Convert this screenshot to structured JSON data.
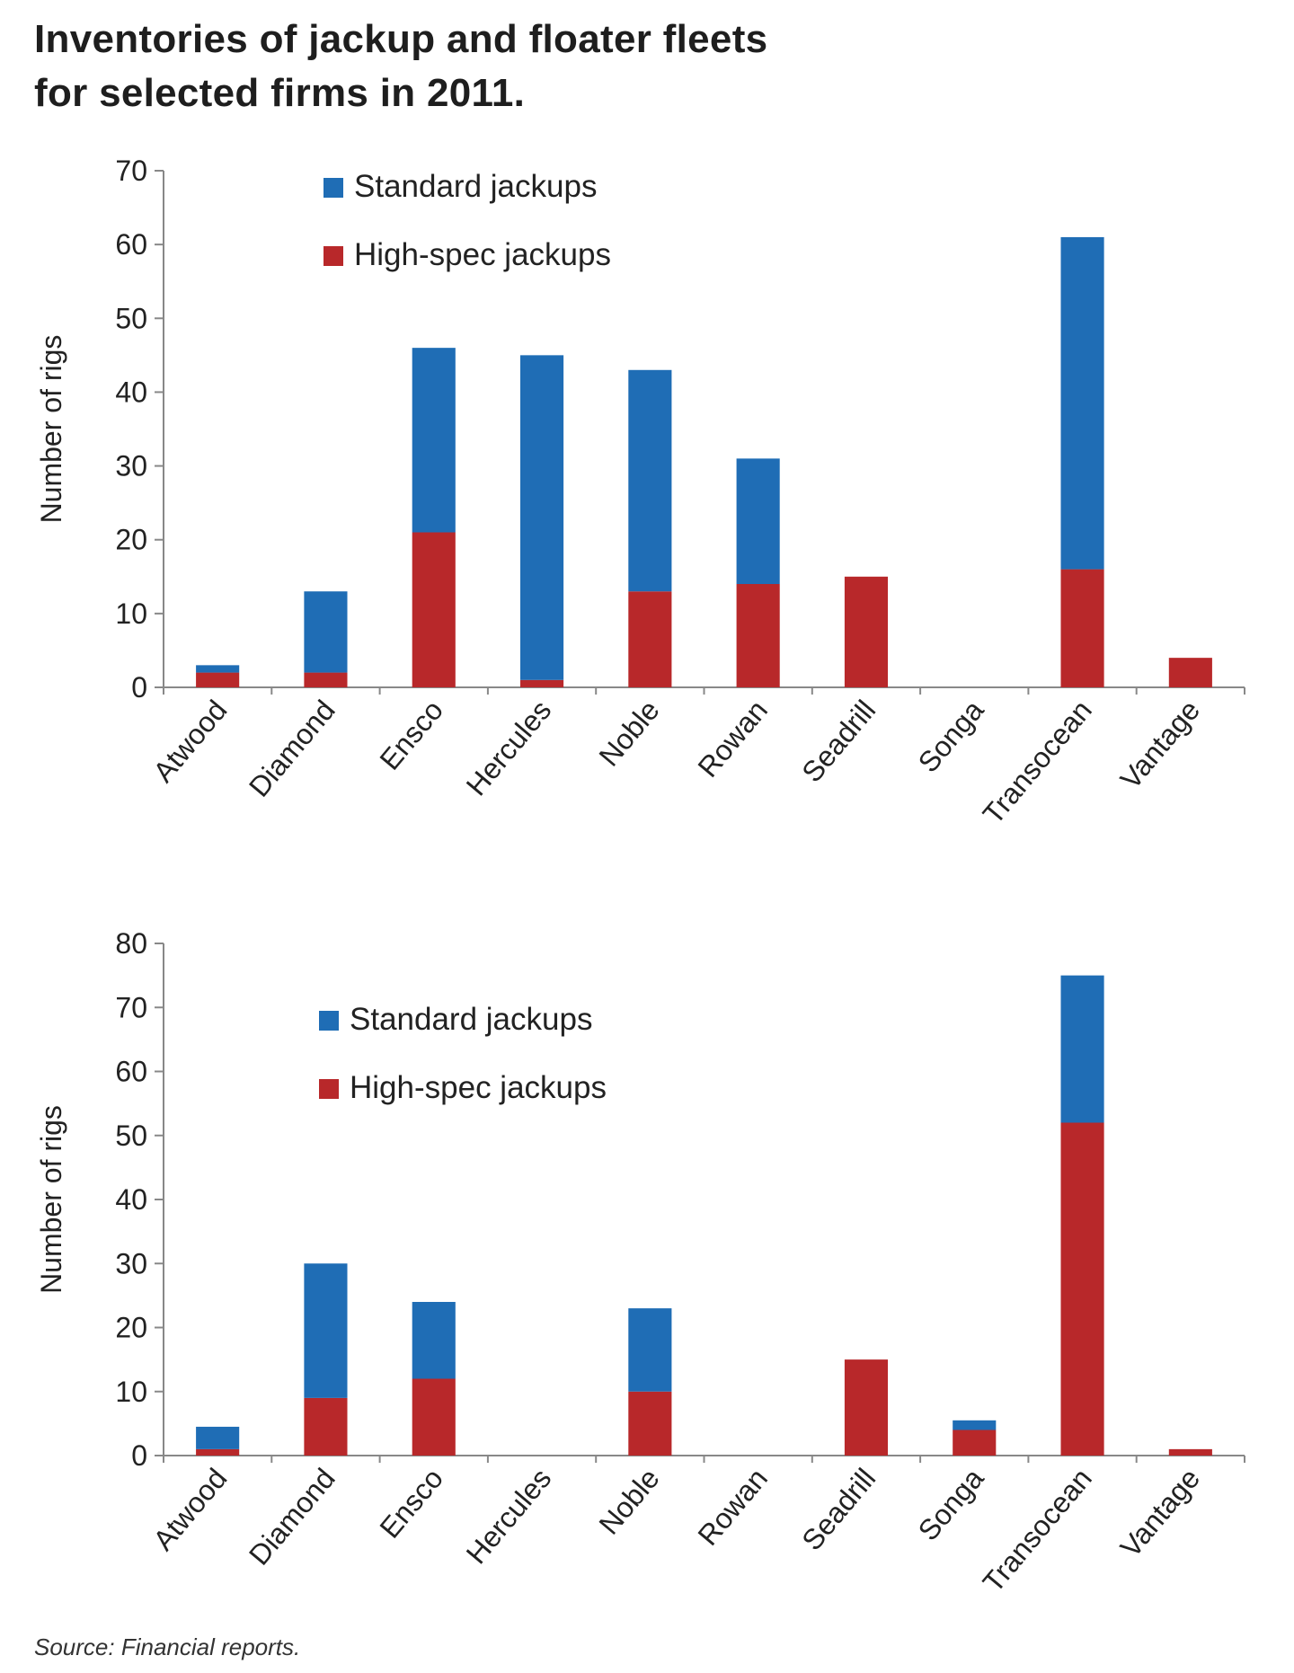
{
  "title": {
    "line1": "Inventories of jackup and floater fleets",
    "line2": "for selected firms in 2011."
  },
  "source": "Source: Financial reports.",
  "colors": {
    "standard": "#1f6db5",
    "high_spec": "#b8282a",
    "axis": "#888888",
    "text": "#222222"
  },
  "chart_data": [
    {
      "type": "bar",
      "stacked": true,
      "ylabel": "Number of rigs",
      "ylim": [
        0,
        70
      ],
      "yticks": [
        0,
        10,
        20,
        30,
        40,
        50,
        60,
        70
      ],
      "legend_position": "top-left",
      "categories": [
        "Atwood",
        "Diamond",
        "Ensco",
        "Hercules",
        "Noble",
        "Rowan",
        "Seadrill",
        "Songa",
        "Transocean",
        "Vantage"
      ],
      "series": [
        {
          "name": "High-spec jackups",
          "values": [
            2,
            2,
            21,
            1,
            13,
            14,
            15,
            0,
            16,
            4
          ]
        },
        {
          "name": "Standard jackups",
          "values": [
            1,
            11,
            25,
            44,
            30,
            17,
            0,
            0,
            45,
            0
          ]
        }
      ]
    },
    {
      "type": "bar",
      "stacked": true,
      "ylabel": "Number of rigs",
      "ylim": [
        0,
        80
      ],
      "yticks": [
        0,
        10,
        20,
        30,
        40,
        50,
        60,
        70,
        80
      ],
      "legend_position": "top-left",
      "categories": [
        "Atwood",
        "Diamond",
        "Ensco",
        "Hercules",
        "Noble",
        "Rowan",
        "Seadrill",
        "Songa",
        "Transocean",
        "Vantage"
      ],
      "series": [
        {
          "name": "High-spec jackups",
          "values": [
            1,
            9,
            12,
            0,
            10,
            0,
            15,
            4,
            52,
            1
          ]
        },
        {
          "name": "Standard jackups",
          "values": [
            3.5,
            21,
            12,
            0,
            13,
            0,
            0,
            1.5,
            23,
            0
          ]
        }
      ]
    }
  ]
}
